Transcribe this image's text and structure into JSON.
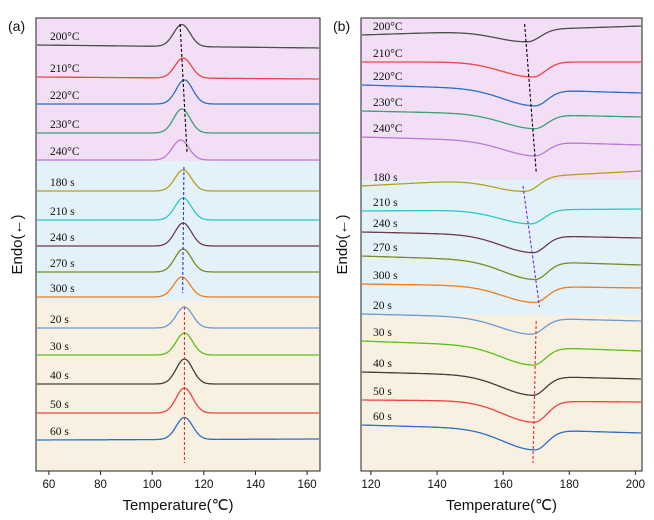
{
  "chart_data": [
    {
      "type": "line",
      "panel_label": "(a)",
      "xlabel": "Temperature(℃)",
      "ylabel": "Endo(←)",
      "xlim": [
        55,
        165
      ],
      "xticks": [
        60,
        80,
        100,
        120,
        140,
        160
      ],
      "peak_type": "endotherm",
      "bands": [
        {
          "name": "isothermal-temperature",
          "color": "#f2def5",
          "guide_color": "#000000",
          "guide_x": [
            110.8,
            113.5
          ],
          "curves": [
            {
              "label": "200°C",
              "color": "#4d4d4d",
              "peak_x": 111.5
            },
            {
              "label": "210°C",
              "color": "#ee4444",
              "peak_x": 112
            },
            {
              "label": "220°C",
              "color": "#2a6fc9",
              "peak_x": 112.5
            },
            {
              "label": "230°C",
              "color": "#3aa07a",
              "peak_x": 111.5
            },
            {
              "label": "240°C",
              "color": "#b879d8",
              "peak_x": 111
            }
          ]
        },
        {
          "name": "isothermal-time",
          "color": "#e3f1f8",
          "guide_color": "#3333cc",
          "guide_x": [
            112.3,
            111.8
          ],
          "curves": [
            {
              "label": "180 s",
              "color": "#b8a01e",
              "peak_x": 112
            },
            {
              "label": "210 s",
              "color": "#2cc8c8",
              "peak_x": 112
            },
            {
              "label": "240 s",
              "color": "#6e3b4e",
              "peak_x": 112
            },
            {
              "label": "270 s",
              "color": "#7a8c1e",
              "peak_x": 112
            },
            {
              "label": "300 s",
              "color": "#f07c1a",
              "peak_x": 111.5
            }
          ]
        },
        {
          "name": "holding-time",
          "color": "#f8f0e0",
          "guide_color": "#e03030",
          "guide_x": [
            112.5,
            112.5
          ],
          "curves": [
            {
              "label": "20 s",
              "color": "#6a9ad6",
              "peak_x": 112.5
            },
            {
              "label": "30 s",
              "color": "#5cc018",
              "peak_x": 112.5
            },
            {
              "label": "40 s",
              "color": "#3f3f3f",
              "peak_x": 112.5
            },
            {
              "label": "50 s",
              "color": "#ee4444",
              "peak_x": 112.5
            },
            {
              "label": "60 s",
              "color": "#2a6fc9",
              "peak_x": 112.5
            }
          ]
        }
      ]
    },
    {
      "type": "line",
      "panel_label": "(b)",
      "xlabel": "Temperature(℃)",
      "ylabel": "Endo(←)",
      "xlim": [
        117,
        202
      ],
      "xticks": [
        120,
        140,
        160,
        180,
        200
      ],
      "peak_type": "exotherm",
      "bands": [
        {
          "name": "isothermal-temperature",
          "color": "#f2def5",
          "guide_color": "#000000",
          "guide_x": [
            166.5,
            170
          ],
          "curves": [
            {
              "label": "200°C",
              "color": "#4d4d4d",
              "peak_x": 167.5
            },
            {
              "label": "210°C",
              "color": "#ee4444",
              "peak_x": 169
            },
            {
              "label": "220°C",
              "color": "#2a6fc9",
              "peak_x": 169.5
            },
            {
              "label": "230°C",
              "color": "#3aa07a",
              "peak_x": 169.5
            },
            {
              "label": "240°C",
              "color": "#b879d8",
              "peak_x": 169.5
            }
          ]
        },
        {
          "name": "isothermal-time",
          "color": "#e3f1f8",
          "guide_color": "#7a2ad8",
          "guide_x": [
            166,
            171
          ],
          "curves": [
            {
              "label": "180 s",
              "color": "#b8a01e",
              "peak_x": 167
            },
            {
              "label": "210 s",
              "color": "#2cc8c8",
              "peak_x": 168.5
            },
            {
              "label": "240 s",
              "color": "#6e3b4e",
              "peak_x": 169
            },
            {
              "label": "270 s",
              "color": "#7a8c1e",
              "peak_x": 169.5
            },
            {
              "label": "300 s",
              "color": "#f07c1a",
              "peak_x": 169.5
            }
          ]
        },
        {
          "name": "holding-time",
          "color": "#f8f0e0",
          "guide_color": "#e03030",
          "guide_x": [
            170,
            169
          ],
          "curves": [
            {
              "label": "20 s",
              "color": "#6a9ad6",
              "peak_x": 168.5
            },
            {
              "label": "30 s",
              "color": "#5cc018",
              "peak_x": 169
            },
            {
              "label": "40 s",
              "color": "#3f3f3f",
              "peak_x": 169
            },
            {
              "label": "50 s",
              "color": "#ee4444",
              "peak_x": 169.5
            },
            {
              "label": "60 s",
              "color": "#2a6fc9",
              "peak_x": 169.5
            }
          ]
        }
      ]
    }
  ]
}
